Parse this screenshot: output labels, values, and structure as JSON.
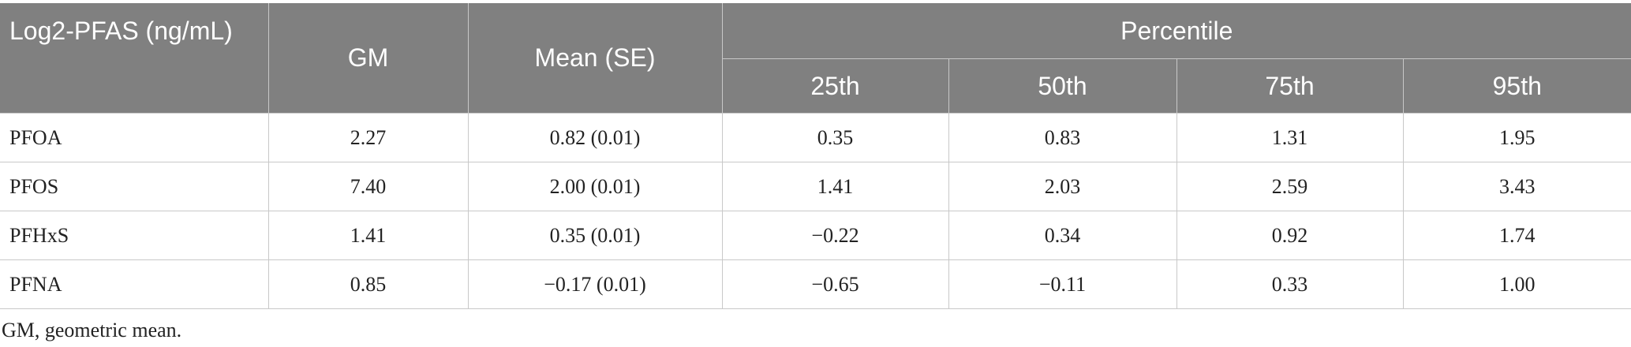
{
  "table": {
    "headers": [
      "Log2-PFAS (ng/mL)",
      "GM",
      "Mean (SE)",
      "Percentile"
    ],
    "subheaders": [
      "25th",
      "50th",
      "75th",
      "95th"
    ],
    "rows": [
      [
        "PFOA",
        "2.27",
        "0.82 (0.01)",
        "0.35",
        "0.83",
        "1.31",
        "1.95"
      ],
      [
        "PFOS",
        "7.40",
        "2.00 (0.01)",
        "1.41",
        "2.03",
        "2.59",
        "3.43"
      ],
      [
        "PFHxS",
        "1.41",
        "0.35 (0.01)",
        "−0.22",
        "0.34",
        "0.92",
        "1.74"
      ],
      [
        "PFNA",
        "0.85",
        "−0.17 (0.01)",
        "−0.65",
        "−0.11",
        "0.33",
        "1.00"
      ]
    ]
  },
  "footnote": "GM, geometric mean."
}
